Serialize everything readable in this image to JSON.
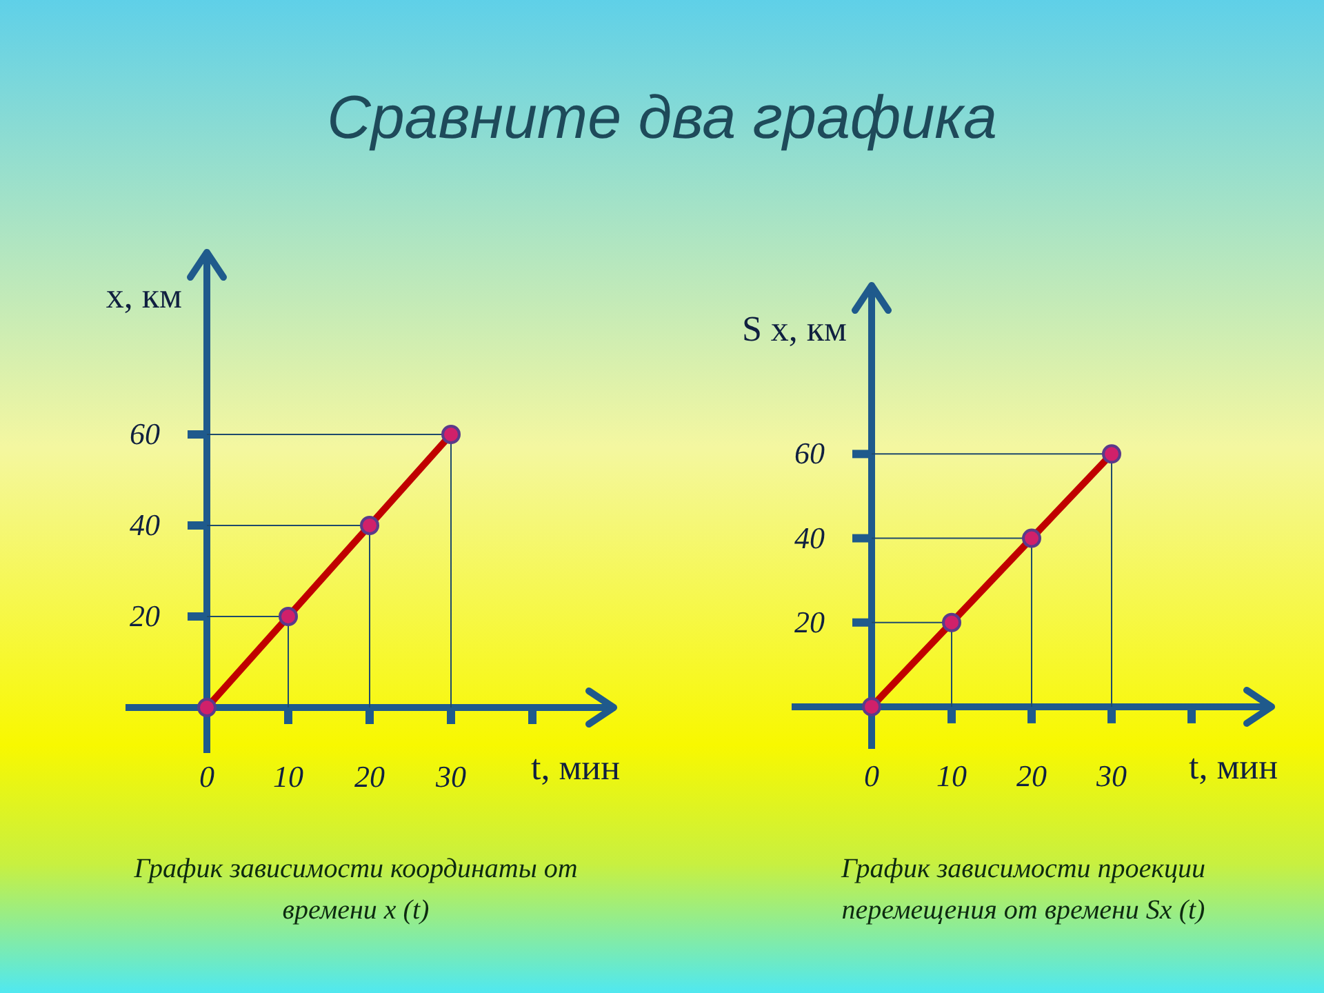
{
  "chart_data": [
    {
      "type": "line",
      "title": "Сравните два графика",
      "xlabel": "t, мин",
      "ylabel": "x, км",
      "x": [
        0,
        10,
        20,
        30
      ],
      "series": [
        {
          "color": "#c00000",
          "values": [
            0,
            20,
            40,
            60
          ]
        }
      ],
      "xlim": [
        -10,
        50
      ],
      "ylim": [
        -10,
        100
      ],
      "xticks": [
        0,
        10,
        20,
        30,
        {
          "value": 40,
          "label": null
        }
      ],
      "yticks": [
        20,
        40,
        60
      ],
      "marker": "circle",
      "grid": false,
      "annotations": [
        "График зависимости координаты от времени x (t)"
      ]
    },
    {
      "type": "line",
      "xlabel": "t, мин",
      "ylabel": "S x, км",
      "x": [
        0,
        10,
        20,
        30
      ],
      "series": [
        {
          "color": "#c00000",
          "values": [
            0,
            20,
            40,
            60
          ]
        }
      ],
      "xlim": [
        -10,
        50
      ],
      "ylim": [
        -10,
        100
      ],
      "xticks": [
        0,
        10,
        20,
        30,
        {
          "value": 40,
          "label": null
        }
      ],
      "yticks": [
        20,
        40,
        60
      ],
      "marker": "circle",
      "grid": false,
      "annotations": [
        "График зависимости проекции перемещения от времени Sx (t)"
      ]
    }
  ]
}
